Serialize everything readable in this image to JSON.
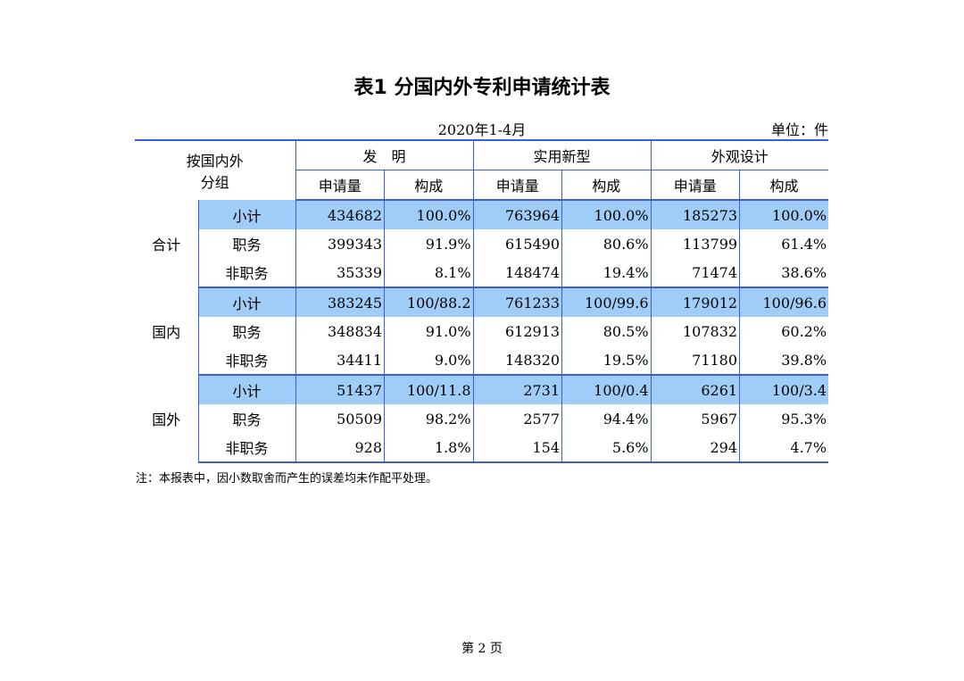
{
  "title": "表1  分国内外专利申请统计表",
  "period": "2020年1-4月",
  "unit": "单位：件",
  "header": {
    "group_label_line1": "按国内外",
    "group_label_line2": "分组",
    "types": [
      "发　明",
      "实用新型",
      "外观设计"
    ],
    "sub_cols": [
      "申请量",
      "构成",
      "申请量",
      "构成",
      "申请量",
      "构成"
    ]
  },
  "groups": [
    {
      "name": "合计",
      "rows": [
        {
          "label": "小计",
          "values": [
            "434682",
            "100.0%",
            "763964",
            "100.0%",
            "185273",
            "100.0%"
          ]
        },
        {
          "label": "职务",
          "values": [
            "399343",
            "91.9%",
            "615490",
            "80.6%",
            "113799",
            "61.4%"
          ]
        },
        {
          "label": "非职务",
          "values": [
            "35339",
            "8.1%",
            "148474",
            "19.4%",
            "71474",
            "38.6%"
          ]
        }
      ]
    },
    {
      "name": "国内",
      "rows": [
        {
          "label": "小计",
          "values": [
            "383245",
            "100/88.2",
            "761233",
            "100/99.6",
            "179012",
            "100/96.6"
          ]
        },
        {
          "label": "职务",
          "values": [
            "348834",
            "91.0%",
            "612913",
            "80.5%",
            "107832",
            "60.2%"
          ]
        },
        {
          "label": "非职务",
          "values": [
            "34411",
            "9.0%",
            "148320",
            "19.5%",
            "71180",
            "39.8%"
          ]
        }
      ]
    },
    {
      "name": "国外",
      "rows": [
        {
          "label": "小计",
          "values": [
            "51437",
            "100/11.8",
            "2731",
            "100/0.4",
            "6261",
            "100/3.4"
          ]
        },
        {
          "label": "职务",
          "values": [
            "50509",
            "98.2%",
            "2577",
            "94.4%",
            "5967",
            "95.3%"
          ]
        },
        {
          "label": "非职务",
          "values": [
            "928",
            "1.8%",
            "154",
            "5.6%",
            "294",
            "4.7%"
          ]
        }
      ]
    }
  ],
  "note": "注：本报表中，因小数取舍而产生的误差均未作配平处理。",
  "page_number": "第 2 页",
  "colors": {
    "border": "#3b5fd0",
    "highlight": "#9fcdf7"
  }
}
